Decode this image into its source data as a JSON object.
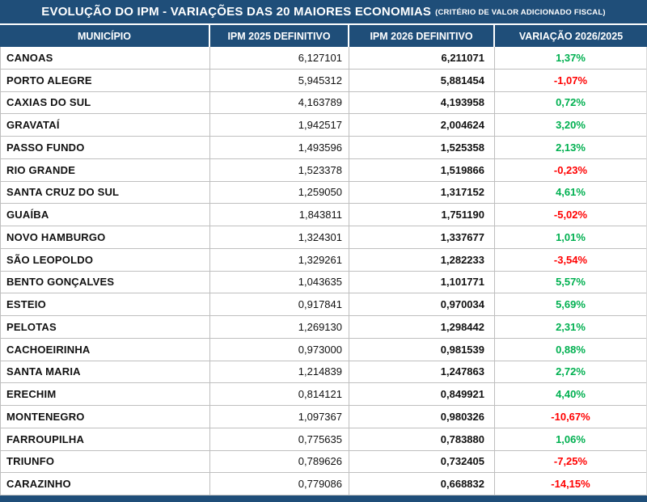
{
  "title": {
    "main": "EVOLUÇÃO DO IPM - VARIAÇÕES DAS 20 MAIORES ECONOMIAS",
    "qualifier": "(CRITÉRIO DE VALOR ADICIONADO FISCAL)"
  },
  "columns": {
    "municipality": "MUNICÍPIO",
    "ipm_2025": "IPM 2025 DEFINITIVO",
    "ipm_2026": "IPM 2026 DEFINITIVO",
    "variation": "VARIAÇÃO 2026/2025"
  },
  "rows": [
    {
      "municipality": "CANOAS",
      "ipm_2025": "6,127101",
      "ipm_2026": "6,211071",
      "variation": "1,37%"
    },
    {
      "municipality": "PORTO ALEGRE",
      "ipm_2025": "5,945312",
      "ipm_2026": "5,881454",
      "variation": "-1,07%"
    },
    {
      "municipality": "CAXIAS DO SUL",
      "ipm_2025": "4,163789",
      "ipm_2026": "4,193958",
      "variation": "0,72%"
    },
    {
      "municipality": "GRAVATAÍ",
      "ipm_2025": "1,942517",
      "ipm_2026": "2,004624",
      "variation": "3,20%"
    },
    {
      "municipality": "PASSO FUNDO",
      "ipm_2025": "1,493596",
      "ipm_2026": "1,525358",
      "variation": "2,13%"
    },
    {
      "municipality": "RIO GRANDE",
      "ipm_2025": "1,523378",
      "ipm_2026": "1,519866",
      "variation": "-0,23%"
    },
    {
      "municipality": "SANTA CRUZ DO SUL",
      "ipm_2025": "1,259050",
      "ipm_2026": "1,317152",
      "variation": "4,61%"
    },
    {
      "municipality": "GUAÍBA",
      "ipm_2025": "1,843811",
      "ipm_2026": "1,751190",
      "variation": "-5,02%"
    },
    {
      "municipality": "NOVO HAMBURGO",
      "ipm_2025": "1,324301",
      "ipm_2026": "1,337677",
      "variation": "1,01%"
    },
    {
      "municipality": "SÃO LEOPOLDO",
      "ipm_2025": "1,329261",
      "ipm_2026": "1,282233",
      "variation": "-3,54%"
    },
    {
      "municipality": "BENTO GONÇALVES",
      "ipm_2025": "1,043635",
      "ipm_2026": "1,101771",
      "variation": "5,57%"
    },
    {
      "municipality": "ESTEIO",
      "ipm_2025": "0,917841",
      "ipm_2026": "0,970034",
      "variation": "5,69%"
    },
    {
      "municipality": "PELOTAS",
      "ipm_2025": "1,269130",
      "ipm_2026": "1,298442",
      "variation": "2,31%"
    },
    {
      "municipality": "CACHOEIRINHA",
      "ipm_2025": "0,973000",
      "ipm_2026": "0,981539",
      "variation": "0,88%"
    },
    {
      "municipality": "SANTA MARIA",
      "ipm_2025": "1,214839",
      "ipm_2026": "1,247863",
      "variation": "2,72%"
    },
    {
      "municipality": "ERECHIM",
      "ipm_2025": "0,814121",
      "ipm_2026": "0,849921",
      "variation": "4,40%"
    },
    {
      "municipality": "MONTENEGRO",
      "ipm_2025": "1,097367",
      "ipm_2026": "0,980326",
      "variation": "-10,67%"
    },
    {
      "municipality": "FARROUPILHA",
      "ipm_2025": "0,775635",
      "ipm_2026": "0,783880",
      "variation": "1,06%"
    },
    {
      "municipality": "TRIUNFO",
      "ipm_2025": "0,789626",
      "ipm_2026": "0,732405",
      "variation": "-7,25%"
    },
    {
      "municipality": "CARAZINHO",
      "ipm_2025": "0,779086",
      "ipm_2026": "0,668832",
      "variation": "-14,15%"
    }
  ],
  "colors": {
    "header_bg": "#1F4E79",
    "positive": "#00B050",
    "negative": "#FF0000",
    "grid": "#BFBFBF"
  }
}
